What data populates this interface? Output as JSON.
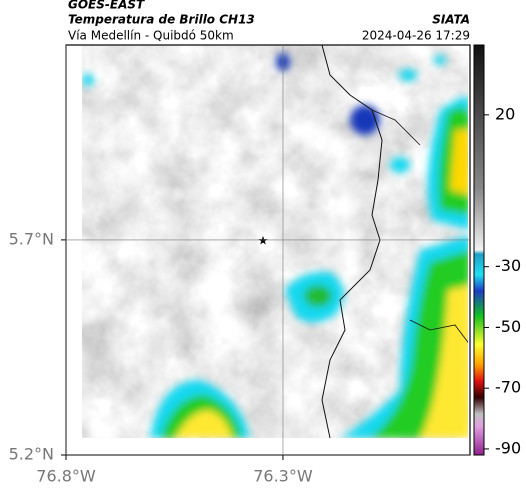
{
  "header": {
    "source": "GOES-EAST",
    "title": "Temperatura de Brillo CH13",
    "org": "SIATA",
    "subtitle": "Vía Medellín - Quibdó 50km",
    "timestamp": "2024-04-26 17:29"
  },
  "map": {
    "latlim": [
      5.2,
      6.153
    ],
    "lonlim": [
      -76.8,
      -75.869
    ],
    "lat_ticks": [
      {
        "value": 5.7,
        "label": "5.7°N"
      },
      {
        "value": 5.2,
        "label": "5.2°N"
      }
    ],
    "lon_ticks": [
      {
        "value": -76.8,
        "label": "76.8°W"
      },
      {
        "value": -76.3,
        "label": "76.3°W"
      }
    ]
  },
  "colorbar": {
    "lim": [
      -92,
      43
    ],
    "ticks": [
      20,
      -30,
      -50,
      -70,
      -90
    ]
  }
}
